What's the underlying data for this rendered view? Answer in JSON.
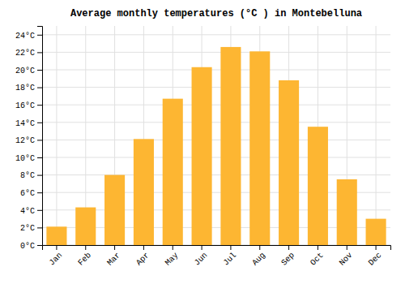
{
  "chart_data": {
    "type": "bar",
    "title": "Average monthly temperatures (°C ) in Montebelluna",
    "categories": [
      "Jan",
      "Feb",
      "Mar",
      "Apr",
      "May",
      "Jun",
      "Jul",
      "Aug",
      "Sep",
      "Oct",
      "Nov",
      "Dec"
    ],
    "values": [
      2.1,
      4.3,
      8.0,
      12.1,
      16.7,
      20.3,
      22.6,
      22.1,
      18.8,
      13.5,
      7.5,
      3.0
    ],
    "color": "#FDB632",
    "ylim": [
      0,
      25
    ],
    "yticks": [
      {
        "value": 0,
        "label": "0°C"
      },
      {
        "value": 2,
        "label": "2°C"
      },
      {
        "value": 4,
        "label": "4°C"
      },
      {
        "value": 6,
        "label": "6°C"
      },
      {
        "value": 8,
        "label": "8°C"
      },
      {
        "value": 10,
        "label": "10°C"
      },
      {
        "value": 12,
        "label": "12°C"
      },
      {
        "value": 14,
        "label": "14°C"
      },
      {
        "value": 16,
        "label": "16°C"
      },
      {
        "value": 18,
        "label": "18°C"
      },
      {
        "value": 20,
        "label": "20°C"
      },
      {
        "value": 22,
        "label": "22°C"
      },
      {
        "value": 24,
        "label": "24°C"
      }
    ],
    "grid": true
  }
}
